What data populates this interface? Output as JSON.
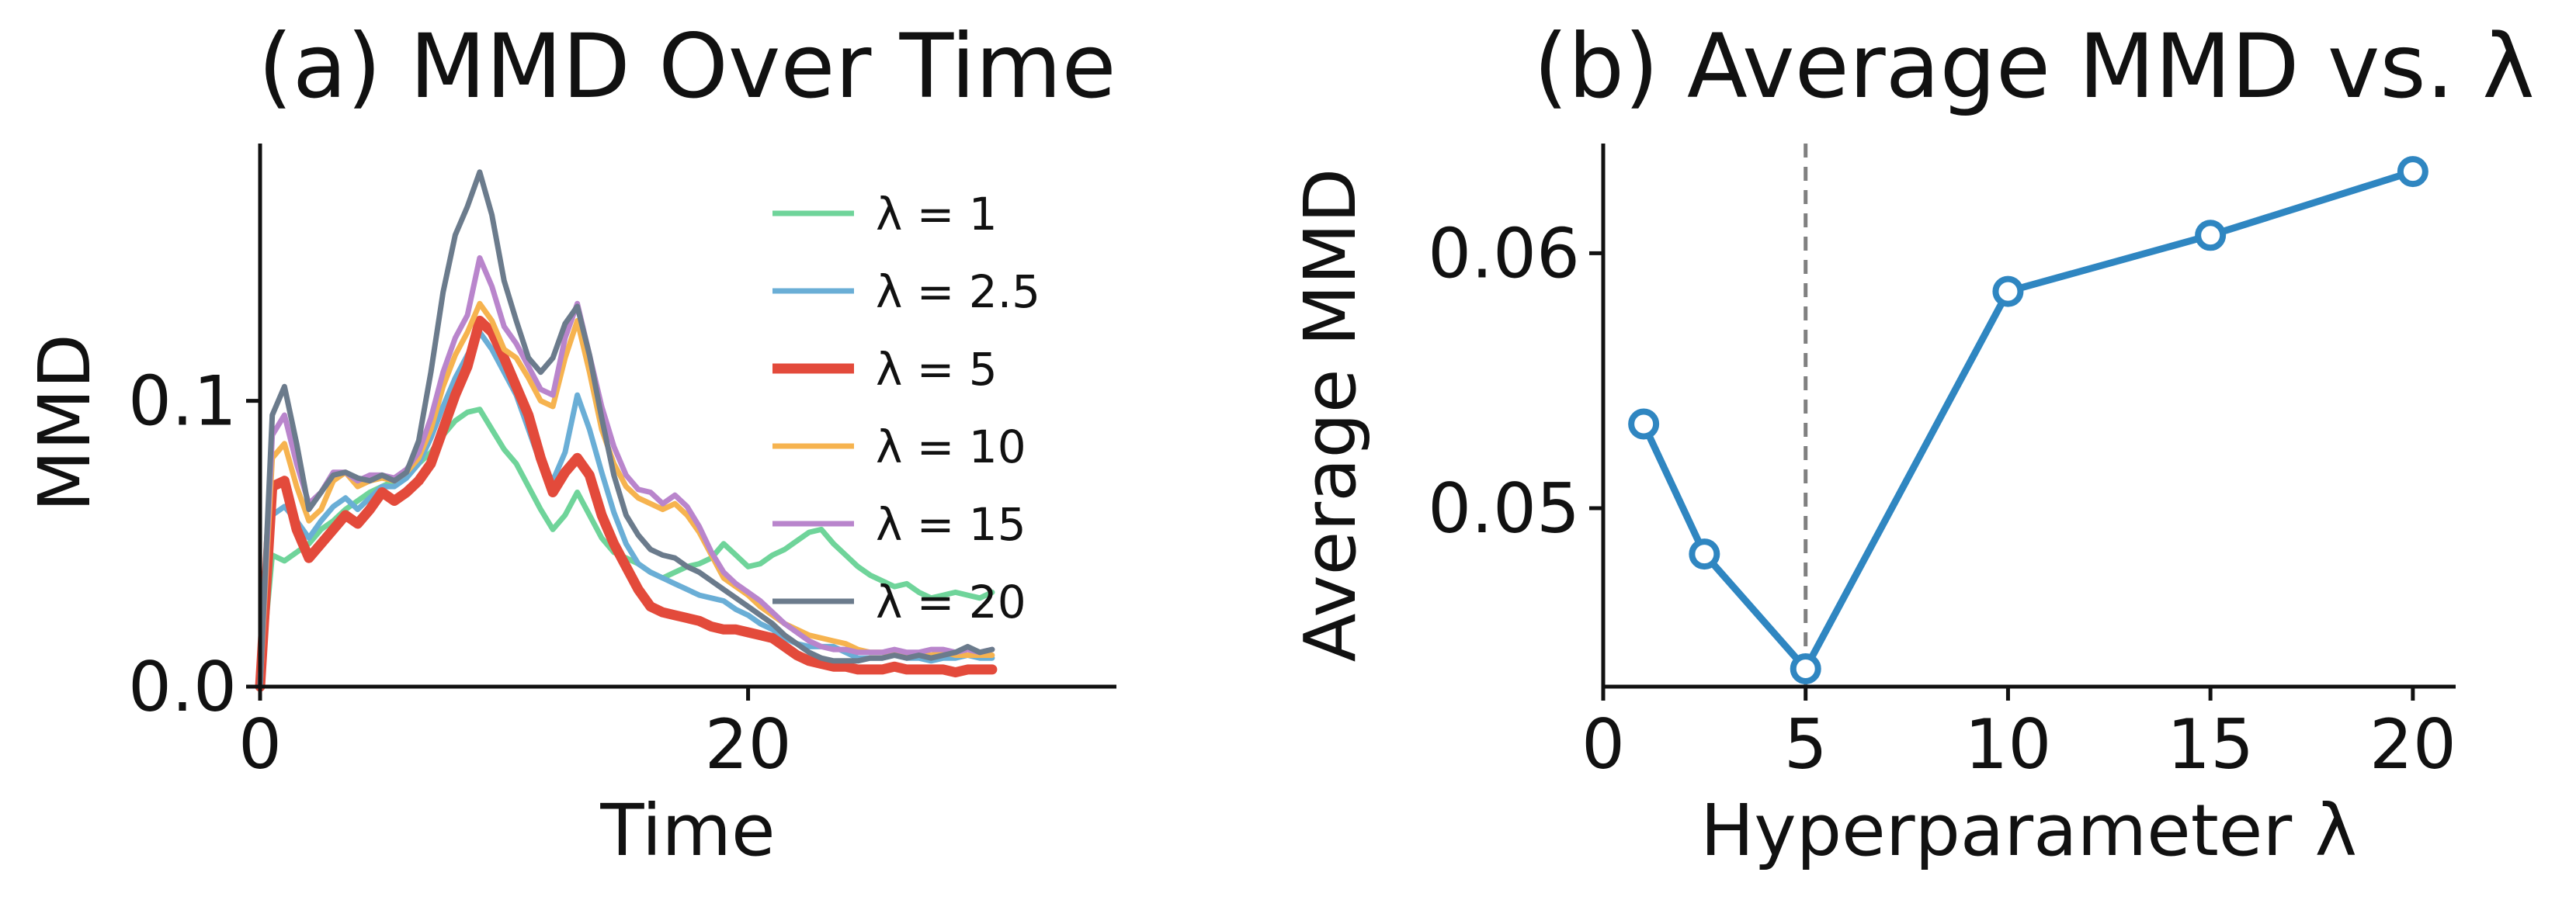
{
  "chart_data": [
    {
      "panel_id": "a",
      "type": "line",
      "title": "(a) MMD Over Time",
      "xlabel": "Time",
      "ylabel": "MMD",
      "xlim": [
        0,
        35
      ],
      "ylim": [
        0,
        0.19
      ],
      "xticks": [
        0,
        20
      ],
      "xtick_labels": [
        "0",
        "20"
      ],
      "yticks": [
        0.0,
        0.1
      ],
      "ytick_labels": [
        "0.0",
        "0.1"
      ],
      "grid": false,
      "legend_position": "upper right",
      "x": [
        0,
        0.5,
        1,
        1.5,
        2,
        2.5,
        3,
        3.5,
        4,
        4.5,
        5,
        5.5,
        6,
        6.5,
        7,
        7.5,
        8,
        8.5,
        9,
        9.5,
        10,
        10.5,
        11,
        11.5,
        12,
        12.5,
        13,
        13.5,
        14,
        14.5,
        15,
        15.5,
        16,
        16.5,
        17,
        17.5,
        18,
        18.5,
        19,
        19.5,
        20,
        20.5,
        21,
        21.5,
        22,
        22.5,
        23,
        23.5,
        24,
        24.5,
        25,
        25.5,
        26,
        26.5,
        27,
        27.5,
        28,
        28.5,
        29,
        29.5,
        30
      ],
      "series": [
        {
          "name": "λ = 1",
          "color": "#6fd49a",
          "width": 7,
          "values": [
            0,
            0.046,
            0.044,
            0.047,
            0.05,
            0.055,
            0.058,
            0.062,
            0.065,
            0.068,
            0.07,
            0.072,
            0.076,
            0.078,
            0.082,
            0.088,
            0.093,
            0.096,
            0.097,
            0.09,
            0.083,
            0.078,
            0.07,
            0.062,
            0.055,
            0.06,
            0.068,
            0.06,
            0.052,
            0.047,
            0.045,
            0.043,
            0.04,
            0.038,
            0.04,
            0.042,
            0.043,
            0.045,
            0.05,
            0.046,
            0.042,
            0.043,
            0.046,
            0.048,
            0.051,
            0.054,
            0.055,
            0.05,
            0.046,
            0.042,
            0.039,
            0.037,
            0.035,
            0.036,
            0.033,
            0.031,
            0.032,
            0.033,
            0.032,
            0.031,
            0.033
          ]
        },
        {
          "name": "λ = 2.5",
          "color": "#6aaed6",
          "width": 7,
          "values": [
            0,
            0.06,
            0.063,
            0.058,
            0.052,
            0.058,
            0.063,
            0.066,
            0.062,
            0.066,
            0.07,
            0.07,
            0.073,
            0.078,
            0.087,
            0.098,
            0.108,
            0.116,
            0.124,
            0.118,
            0.11,
            0.102,
            0.09,
            0.078,
            0.072,
            0.082,
            0.102,
            0.09,
            0.075,
            0.061,
            0.05,
            0.043,
            0.04,
            0.038,
            0.036,
            0.034,
            0.032,
            0.031,
            0.03,
            0.027,
            0.025,
            0.022,
            0.02,
            0.017,
            0.015,
            0.014,
            0.014,
            0.014,
            0.012,
            0.01,
            0.01,
            0.01,
            0.011,
            0.01,
            0.01,
            0.009,
            0.01,
            0.01,
            0.011,
            0.01,
            0.01
          ]
        },
        {
          "name": "λ = 5",
          "color": "#e34a3b",
          "width": 13,
          "values": [
            0,
            0.07,
            0.072,
            0.055,
            0.045,
            0.05,
            0.055,
            0.06,
            0.057,
            0.062,
            0.068,
            0.065,
            0.068,
            0.072,
            0.078,
            0.09,
            0.102,
            0.112,
            0.128,
            0.124,
            0.115,
            0.105,
            0.095,
            0.08,
            0.068,
            0.075,
            0.08,
            0.074,
            0.06,
            0.05,
            0.042,
            0.034,
            0.028,
            0.026,
            0.025,
            0.024,
            0.023,
            0.021,
            0.02,
            0.02,
            0.019,
            0.018,
            0.017,
            0.014,
            0.011,
            0.009,
            0.008,
            0.007,
            0.007,
            0.006,
            0.006,
            0.006,
            0.007,
            0.006,
            0.006,
            0.006,
            0.006,
            0.005,
            0.006,
            0.006,
            0.006
          ]
        },
        {
          "name": "λ = 10",
          "color": "#f6b34f",
          "width": 7,
          "values": [
            0,
            0.08,
            0.085,
            0.07,
            0.058,
            0.062,
            0.072,
            0.075,
            0.07,
            0.072,
            0.073,
            0.072,
            0.075,
            0.08,
            0.09,
            0.105,
            0.116,
            0.124,
            0.134,
            0.128,
            0.118,
            0.115,
            0.108,
            0.1,
            0.098,
            0.115,
            0.128,
            0.11,
            0.09,
            0.078,
            0.07,
            0.066,
            0.064,
            0.062,
            0.064,
            0.06,
            0.054,
            0.046,
            0.038,
            0.035,
            0.032,
            0.028,
            0.025,
            0.022,
            0.02,
            0.018,
            0.017,
            0.016,
            0.015,
            0.013,
            0.012,
            0.012,
            0.012,
            0.011,
            0.011,
            0.011,
            0.012,
            0.011,
            0.011,
            0.011,
            0.011
          ]
        },
        {
          "name": "λ = 15",
          "color": "#b985cc",
          "width": 7,
          "values": [
            0,
            0.088,
            0.095,
            0.078,
            0.064,
            0.068,
            0.075,
            0.075,
            0.072,
            0.074,
            0.074,
            0.073,
            0.076,
            0.082,
            0.094,
            0.11,
            0.122,
            0.13,
            0.15,
            0.14,
            0.126,
            0.12,
            0.112,
            0.104,
            0.102,
            0.122,
            0.134,
            0.116,
            0.098,
            0.084,
            0.074,
            0.069,
            0.068,
            0.064,
            0.067,
            0.063,
            0.056,
            0.047,
            0.04,
            0.036,
            0.033,
            0.03,
            0.026,
            0.022,
            0.019,
            0.016,
            0.014,
            0.013,
            0.013,
            0.012,
            0.012,
            0.012,
            0.013,
            0.012,
            0.012,
            0.013,
            0.013,
            0.012,
            0.013,
            0.012,
            0.013
          ]
        },
        {
          "name": "λ = 20",
          "color": "#6b7b8c",
          "width": 7,
          "values": [
            0,
            0.095,
            0.105,
            0.085,
            0.062,
            0.068,
            0.074,
            0.075,
            0.073,
            0.072,
            0.074,
            0.072,
            0.075,
            0.086,
            0.11,
            0.138,
            0.158,
            0.168,
            0.18,
            0.165,
            0.142,
            0.128,
            0.115,
            0.11,
            0.115,
            0.127,
            0.133,
            0.116,
            0.094,
            0.074,
            0.06,
            0.053,
            0.048,
            0.046,
            0.045,
            0.042,
            0.04,
            0.037,
            0.034,
            0.031,
            0.028,
            0.025,
            0.022,
            0.018,
            0.015,
            0.012,
            0.01,
            0.009,
            0.009,
            0.009,
            0.01,
            0.01,
            0.011,
            0.01,
            0.011,
            0.01,
            0.011,
            0.012,
            0.014,
            0.012,
            0.013
          ]
        }
      ]
    },
    {
      "panel_id": "b",
      "type": "line",
      "title": "(b) Average MMD vs. λ",
      "xlabel": "Hyperparameter λ",
      "ylabel": "Average MMD",
      "xlim": [
        0,
        21
      ],
      "ylim": [
        0.043,
        0.0643
      ],
      "xticks": [
        0,
        5,
        10,
        15,
        20
      ],
      "xtick_labels": [
        "0",
        "5",
        "10",
        "15",
        "20"
      ],
      "yticks": [
        0.05,
        0.06
      ],
      "ytick_labels": [
        "0.05",
        "0.06"
      ],
      "grid": false,
      "color": "#2f86c1",
      "marker": "open circle",
      "reference_line": {
        "x": 5,
        "style": "dashed",
        "color": "#808080"
      },
      "x": [
        1,
        2.5,
        5,
        10,
        15,
        20
      ],
      "values": [
        0.0533,
        0.0482,
        0.0437,
        0.0585,
        0.0607,
        0.0632
      ]
    }
  ]
}
